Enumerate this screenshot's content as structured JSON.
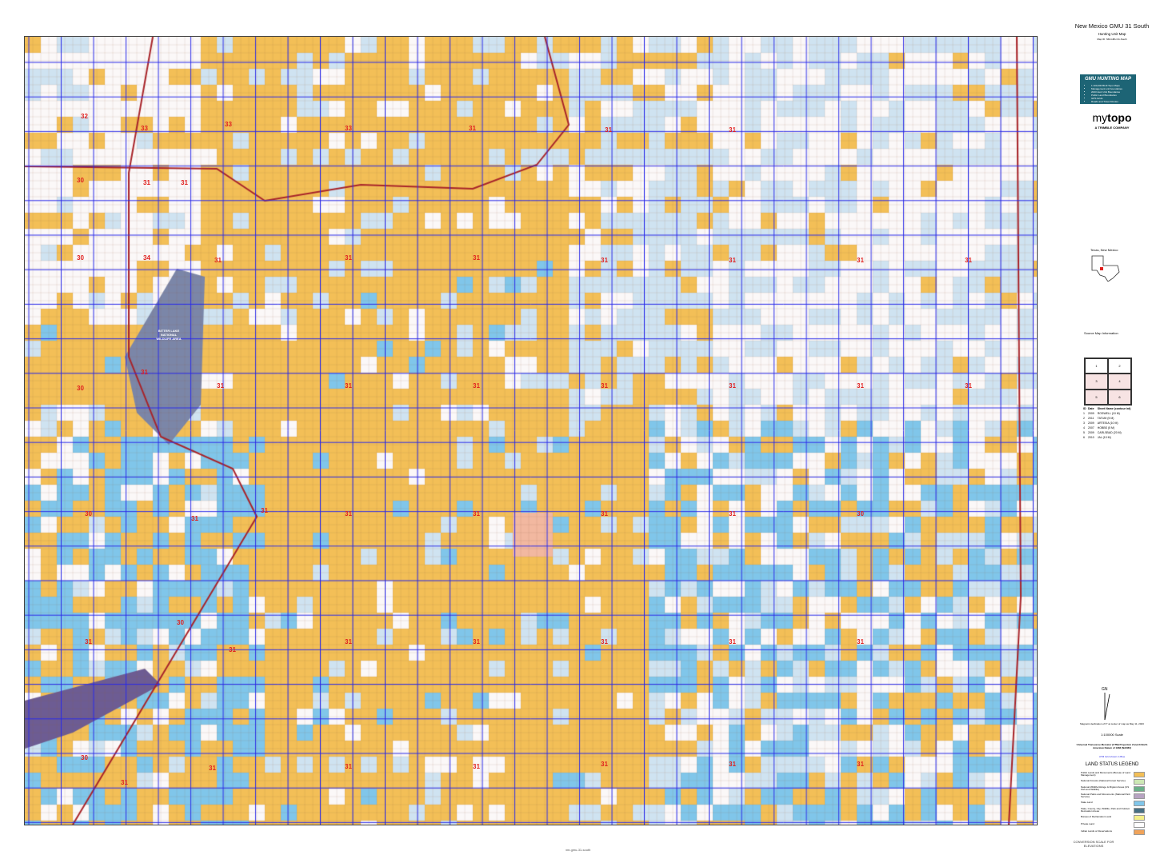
{
  "title": "New Mexico GMU 31 South",
  "subtitle": "Hunting Unit Map",
  "subtitle2": "Map ID: NM-GMU-31-South",
  "promo": {
    "heading": "GMU HUNTING MAP",
    "bullets": [
      "1:100,000 BLM Topo Maps",
      "Management unit boundaries",
      "2023 Hunt Unit Boundaries",
      "Public Land Boundaries",
      "GPS Grids",
      "Roads and Travel Routes"
    ]
  },
  "brand": {
    "logo_light": "my",
    "logo_bold": "topo",
    "company": "A TRIMBLE COMPANY"
  },
  "locator": {
    "label": "Texas, New Mexico"
  },
  "source_maps": {
    "heading": "Source Map Information",
    "grid_cells": [
      "1",
      "2",
      "3",
      "4",
      "5",
      "6"
    ],
    "columns": [
      "ID",
      "Date",
      "Sheet Name (contour int)"
    ],
    "rows": [
      [
        "1",
        "2009",
        "ROSWELL (10 M)"
      ],
      [
        "2",
        "2011",
        "TATUM (5 M)"
      ],
      [
        "3",
        "2009",
        "ARTESIA (10 M)"
      ],
      [
        "4",
        "2007",
        "HOBBS (5 M)"
      ],
      [
        "5",
        "2009",
        "CARLSBAD (20 M)"
      ],
      [
        "6",
        "2010",
        "JAL (10 M)"
      ]
    ]
  },
  "scale": {
    "text": "1:100000 Scale",
    "projection": "Universal Transverse Mercator (UTM) Projection Zone13 North American Datum of 1983 (NAD83)",
    "grid_note": "UTM Grid shown in Blue",
    "declination": "Magnetic declination of 6° at center of map as May 11, 2023",
    "north": [
      "GN",
      "TN",
      "MN"
    ]
  },
  "land_status_legend": {
    "heading": "LAND STATUS LEGEND",
    "items": [
      {
        "label": "Public Lands and Monuments (Bureau of Land Management)",
        "color": "#f3bf57"
      },
      {
        "label": "National Forests (National Forest Service)",
        "color": "#cde8b5"
      },
      {
        "label": "National Wildlife Refuge & Migrant Areas (US Fish and Wildlife)",
        "color": "#6bb089"
      },
      {
        "label": "National Parks and Monuments (National Park Service)",
        "color": "#b7a3c2"
      },
      {
        "label": "State Land",
        "color": "#80c6ea"
      },
      {
        "label": "State, County, City, Wildlife, Park and Outdoor Recreation Areas",
        "color": "#476f83"
      },
      {
        "label": "Bureau of Reclamation Land",
        "color": "#f5f08a"
      },
      {
        "label": "Private Land",
        "color": "#ffffff"
      },
      {
        "label": "Indian Lands or Reservations",
        "color": "#f0a35a"
      }
    ]
  },
  "conversion_scale": "CONVERSION SCALE FOR ELEVATIONS",
  "map": {
    "unit_labels": [
      "32",
      "33",
      "33",
      "33",
      "31",
      "31",
      "31",
      "30",
      "31",
      "31",
      "30",
      "34",
      "31",
      "31",
      "31",
      "31",
      "31",
      "31",
      "31",
      "31",
      "30",
      "31",
      "31",
      "31",
      "31",
      "31",
      "31",
      "31",
      "30",
      "31",
      "31",
      "31",
      "31",
      "31",
      "31",
      "30",
      "30",
      "31",
      "31",
      "31",
      "31",
      "31",
      "31",
      "31",
      "30",
      "31",
      "31",
      "31",
      "31",
      "31",
      "31",
      "31"
    ],
    "place_labels": [
      "BITTER LAKE NATIONAL WILDLIFE AREA"
    ],
    "colors": {
      "blm": "#f3bf57",
      "state": "#80c6ea",
      "state_light": "#cfe3f1",
      "wildlife": "#7b86a8",
      "grid": "#2a2ae8",
      "road": "#a8242a",
      "label": "#e0201e"
    }
  },
  "footer": "nm-gmu-31-south"
}
